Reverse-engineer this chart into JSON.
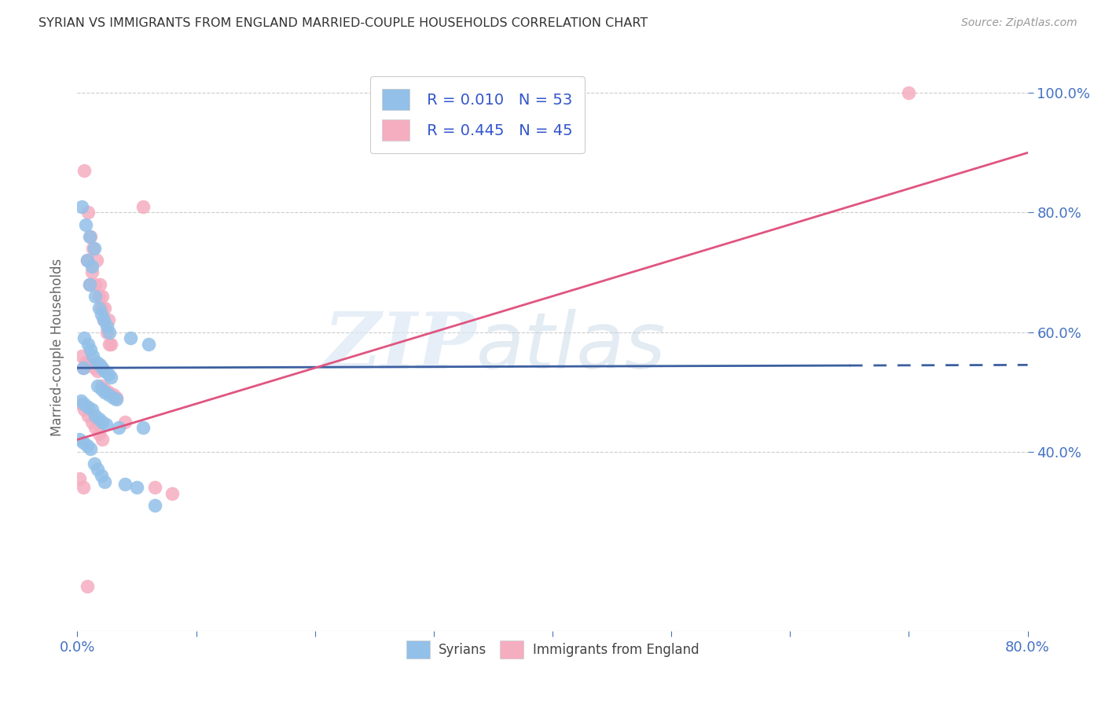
{
  "title": "SYRIAN VS IMMIGRANTS FROM ENGLAND MARRIED-COUPLE HOUSEHOLDS CORRELATION CHART",
  "source": "Source: ZipAtlas.com",
  "ylabel_label": "Married-couple Households",
  "legend_r1": "R = 0.010",
  "legend_n1": "N = 53",
  "legend_r2": "R = 0.445",
  "legend_n2": "N = 45",
  "syrians_color": "#92c0e8",
  "england_color": "#f5adc0",
  "line_syrian_color": "#3b5fa0",
  "line_england_color": "#e05580",
  "watermark_zip": "ZIP",
  "watermark_atlas": "atlas",
  "xlim": [
    0.0,
    80.0
  ],
  "ylim": [
    10.0,
    105.0
  ],
  "yticks": [
    40.0,
    60.0,
    80.0,
    100.0
  ],
  "xtick_labels_show": [
    "0.0%",
    "80.0%"
  ],
  "ytick_labels": [
    "40.0%",
    "60.0%",
    "80.0%",
    "100.0%"
  ],
  "syrians_x": [
    0.5,
    0.8,
    1.0,
    1.2,
    1.5,
    1.8,
    2.0,
    2.2,
    2.5,
    2.7,
    0.6,
    0.9,
    1.1,
    1.3,
    1.6,
    1.9,
    2.1,
    2.3,
    2.6,
    2.8,
    0.4,
    0.7,
    1.0,
    1.4,
    1.7,
    2.0,
    2.3,
    2.6,
    3.0,
    3.3,
    0.3,
    0.6,
    0.9,
    1.2,
    1.5,
    1.8,
    2.1,
    2.4,
    4.5,
    5.5,
    0.2,
    0.5,
    0.8,
    1.1,
    1.4,
    1.7,
    2.0,
    2.3,
    3.5,
    4.0,
    5.0,
    6.0,
    6.5
  ],
  "syrians_y": [
    54.0,
    72.0,
    68.0,
    71.0,
    66.0,
    64.0,
    63.0,
    62.0,
    61.0,
    60.0,
    59.0,
    58.0,
    57.0,
    56.0,
    55.0,
    54.5,
    54.0,
    53.5,
    53.0,
    52.5,
    81.0,
    78.0,
    76.0,
    74.0,
    51.0,
    50.5,
    50.0,
    49.5,
    49.0,
    48.8,
    48.5,
    48.0,
    47.5,
    47.0,
    46.0,
    45.5,
    45.0,
    44.5,
    59.0,
    44.0,
    42.0,
    41.5,
    41.0,
    40.5,
    38.0,
    37.0,
    36.0,
    35.0,
    44.0,
    34.5,
    34.0,
    58.0,
    31.0
  ],
  "england_x": [
    0.5,
    0.8,
    1.0,
    1.2,
    1.5,
    1.8,
    2.0,
    2.2,
    2.5,
    2.7,
    0.6,
    0.9,
    1.1,
    1.3,
    1.6,
    1.9,
    2.1,
    2.3,
    2.6,
    2.8,
    0.4,
    0.7,
    1.0,
    1.4,
    1.7,
    2.0,
    2.3,
    2.6,
    3.0,
    3.3,
    0.3,
    0.6,
    0.9,
    1.2,
    1.5,
    1.8,
    2.1,
    4.0,
    5.5,
    6.5,
    0.2,
    0.5,
    0.8,
    8.0,
    70.0
  ],
  "england_y": [
    54.0,
    72.0,
    68.0,
    70.0,
    68.0,
    66.0,
    64.0,
    62.0,
    60.0,
    58.0,
    87.0,
    80.0,
    76.0,
    74.0,
    72.0,
    68.0,
    66.0,
    64.0,
    62.0,
    58.0,
    56.0,
    55.0,
    54.5,
    54.0,
    53.5,
    51.0,
    50.5,
    50.0,
    49.5,
    49.0,
    48.0,
    47.0,
    46.0,
    45.0,
    44.0,
    43.0,
    42.0,
    45.0,
    81.0,
    34.0,
    35.5,
    34.0,
    17.5,
    33.0,
    100.0
  ],
  "blue_line_x": [
    0.0,
    80.0
  ],
  "blue_line_y": [
    54.0,
    54.5
  ],
  "blue_solid_end": 65.0,
  "pink_line_x0": 0.0,
  "pink_line_x1": 80.0,
  "pink_line_y0": 42.0,
  "pink_line_y1": 90.0
}
